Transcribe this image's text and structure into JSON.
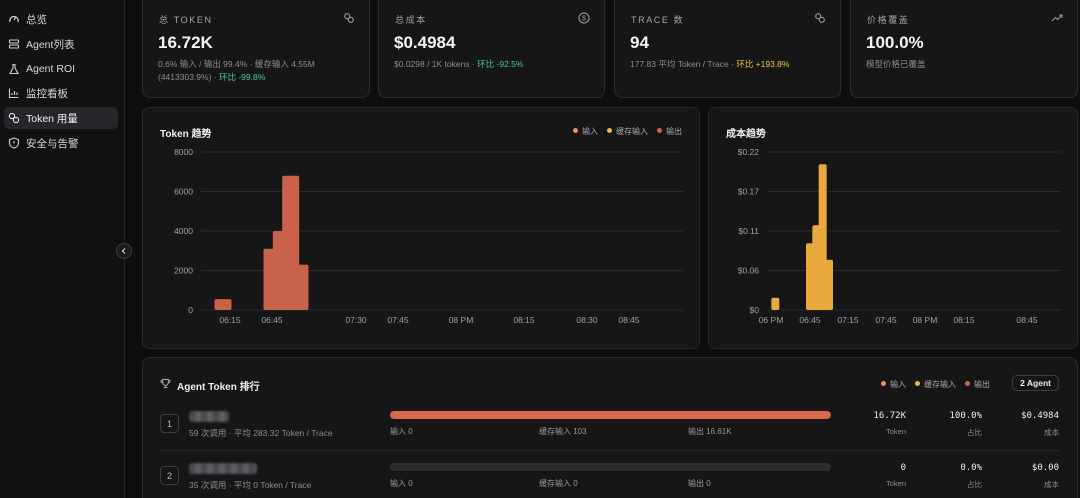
{
  "sidebar": {
    "items": [
      {
        "label": "总览",
        "icon": "gauge-icon"
      },
      {
        "label": "Agent列表",
        "icon": "list-icon"
      },
      {
        "label": "Agent ROI",
        "icon": "flask-icon"
      },
      {
        "label": "监控看板",
        "icon": "chart-icon"
      },
      {
        "label": "Token 用量",
        "icon": "link-icon",
        "active": true
      },
      {
        "label": "安全与告警",
        "icon": "shield-icon"
      }
    ]
  },
  "kpis": [
    {
      "label": "总 TOKEN",
      "value": "16.72K",
      "icon": "link-icon",
      "sub1": "0.6% 输入 / 输出 99.4% · 缓存输入 4.55M",
      "sub2_prefix": "(4413303.9%) · ",
      "sub2_delta": "环比 -99.8%"
    },
    {
      "label": "总成本",
      "value": "$0.4984",
      "icon": "dollar-icon",
      "sub1_prefix": "$0.0298 / 1K tokens · ",
      "sub1_delta": "环比 -92.5%"
    },
    {
      "label": "TRACE 数",
      "value": "94",
      "icon": "link-icon",
      "sub1_prefix": "177.83 平均 Token / Trace · ",
      "sub1_delta": "环比 +193.8%"
    },
    {
      "label": "价格覆盖",
      "value": "100.0%",
      "icon": "trend-icon",
      "sub1": "模型价格已覆盖"
    }
  ],
  "legend": {
    "input": "输入",
    "cache_input": "缓存输入",
    "output": "输出"
  },
  "colors": {
    "input": "#e8926a",
    "cache_input": "#e8b84a",
    "output": "#d0604a",
    "cost_bar": "#e8a83c"
  },
  "chart_data": [
    {
      "type": "bar",
      "title": "Token 趋势",
      "x_ticks": [
        "06:15",
        "06:45",
        "07:30",
        "07:45",
        "08 PM",
        "08:15",
        "08:30",
        "08:45"
      ],
      "y_ticks": [
        "0",
        "2000",
        "4000",
        "6000",
        "8000"
      ],
      "ylim": [
        0,
        8000
      ],
      "bars": [
        {
          "time": "06:10",
          "value": 550
        },
        {
          "time": "06:45",
          "value": 3100
        },
        {
          "time": "06:50",
          "value": 4000
        },
        {
          "time": "06:55",
          "value": 6800
        },
        {
          "time": "07:00",
          "value": 2300
        }
      ]
    },
    {
      "type": "bar",
      "title": "成本趋势",
      "x_ticks": [
        "06 PM",
        "06:45",
        "07:15",
        "07:45",
        "08 PM",
        "08:15",
        "08:45"
      ],
      "y_ticks": [
        "$0",
        "$0.06",
        "$0.11",
        "$0.17",
        "$0.22"
      ],
      "ylim": [
        0,
        0.22
      ],
      "bars": [
        {
          "time": "06:05",
          "value": 0.017
        },
        {
          "time": "06:45",
          "value": 0.093
        },
        {
          "time": "06:50",
          "value": 0.118
        },
        {
          "time": "06:55",
          "value": 0.203
        },
        {
          "time": "07:00",
          "value": 0.07
        }
      ]
    }
  ],
  "ranking": {
    "title": "Agent Token 排行",
    "agent_count": "2 Agent",
    "rows": [
      {
        "rank": "1",
        "sub": "59 次调用 · 平均 283.32 Token / Trace",
        "input": "输入 0",
        "cache": "缓存输入 103",
        "output": "输出 16.61K",
        "bar_fraction": 1.0,
        "tokens": "16.72K",
        "tokens_label": "Token",
        "share": "100.0%",
        "share_label": "占比",
        "cost": "$0.4984",
        "cost_label": "成本"
      },
      {
        "rank": "2",
        "sub": "35 次调用 · 平均 0 Token / Trace",
        "input": "输入 0",
        "cache": "缓存输入 0",
        "output": "输出 0",
        "bar_fraction": 0,
        "tokens": "0",
        "tokens_label": "Token",
        "share": "0.0%",
        "share_label": "占比",
        "cost": "$0.00",
        "cost_label": "成本"
      }
    ]
  }
}
